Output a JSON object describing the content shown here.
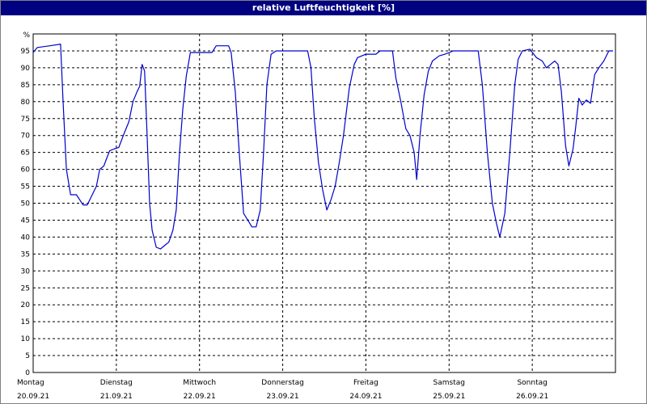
{
  "window": {
    "title": "relative Luftfeuchtigkeit [%]"
  },
  "chart_data": {
    "type": "line",
    "title": "relative Luftfeuchtigkeit [%]",
    "ylabel": "%",
    "xlabel": "",
    "ylim": [
      0,
      100
    ],
    "xlim": [
      0,
      7
    ],
    "yticks": [
      0,
      5,
      10,
      15,
      20,
      25,
      30,
      35,
      40,
      45,
      50,
      55,
      60,
      65,
      70,
      75,
      80,
      85,
      90,
      95
    ],
    "ytick_unit_label": "%",
    "x_ticks": [
      {
        "day": "Montag",
        "date": "20.09.21"
      },
      {
        "day": "Dienstag",
        "date": "21.09.21"
      },
      {
        "day": "Mittwoch",
        "date": "22.09.21"
      },
      {
        "day": "Donnerstag",
        "date": "23.09.21"
      },
      {
        "day": "Freitag",
        "date": "24.09.21"
      },
      {
        "day": "Samstag",
        "date": "25.09.21"
      },
      {
        "day": "Sonntag",
        "date": "26.09.21"
      }
    ],
    "grid": true,
    "series_color": "#0000cc",
    "series": [
      {
        "values": [
          [
            0.0,
            94.5
          ],
          [
            0.05,
            96.0
          ],
          [
            0.2,
            96.5
          ],
          [
            0.33,
            97.0
          ],
          [
            0.36,
            80.0
          ],
          [
            0.4,
            60.0
          ],
          [
            0.45,
            52.5
          ],
          [
            0.52,
            52.5
          ],
          [
            0.6,
            49.5
          ],
          [
            0.65,
            49.5
          ],
          [
            0.72,
            53.0
          ],
          [
            0.76,
            55.0
          ],
          [
            0.8,
            60.0
          ],
          [
            0.85,
            61.0
          ],
          [
            0.88,
            63.0
          ],
          [
            0.92,
            65.5
          ],
          [
            0.97,
            66.0
          ],
          [
            1.03,
            66.5
          ],
          [
            1.1,
            71.0
          ],
          [
            1.15,
            74.0
          ],
          [
            1.2,
            80.0
          ],
          [
            1.25,
            83.0
          ],
          [
            1.28,
            84.5
          ],
          [
            1.31,
            91.0
          ],
          [
            1.34,
            89.0
          ],
          [
            1.37,
            70.0
          ],
          [
            1.4,
            50.0
          ],
          [
            1.43,
            42.0
          ],
          [
            1.48,
            37.0
          ],
          [
            1.53,
            36.5
          ],
          [
            1.58,
            37.5
          ],
          [
            1.63,
            38.5
          ],
          [
            1.68,
            42.0
          ],
          [
            1.72,
            48.0
          ],
          [
            1.76,
            65.0
          ],
          [
            1.8,
            78.0
          ],
          [
            1.84,
            87.5
          ],
          [
            1.89,
            94.5
          ],
          [
            1.97,
            94.5
          ],
          [
            2.15,
            94.5
          ],
          [
            2.2,
            96.5
          ],
          [
            2.35,
            96.5
          ],
          [
            2.38,
            94.5
          ],
          [
            2.43,
            83.0
          ],
          [
            2.48,
            64.0
          ],
          [
            2.53,
            47.0
          ],
          [
            2.58,
            45.0
          ],
          [
            2.63,
            43.0
          ],
          [
            2.68,
            43.0
          ],
          [
            2.73,
            48.0
          ],
          [
            2.77,
            65.0
          ],
          [
            2.81,
            85.0
          ],
          [
            2.86,
            94.0
          ],
          [
            2.92,
            95.0
          ],
          [
            3.0,
            95.0
          ],
          [
            3.3,
            95.0
          ],
          [
            3.34,
            90.0
          ],
          [
            3.38,
            75.0
          ],
          [
            3.43,
            62.0
          ],
          [
            3.48,
            54.0
          ],
          [
            3.53,
            48.0
          ],
          [
            3.58,
            51.0
          ],
          [
            3.63,
            55.0
          ],
          [
            3.68,
            62.0
          ],
          [
            3.73,
            70.0
          ],
          [
            3.8,
            84.0
          ],
          [
            3.86,
            91.0
          ],
          [
            3.9,
            93.0
          ],
          [
            4.0,
            94.0
          ],
          [
            4.12,
            94.0
          ],
          [
            4.17,
            95.0
          ],
          [
            4.32,
            95.0
          ],
          [
            4.36,
            87.0
          ],
          [
            4.42,
            80.0
          ],
          [
            4.48,
            72.0
          ],
          [
            4.53,
            70.0
          ],
          [
            4.58,
            65.0
          ],
          [
            4.61,
            57.0
          ],
          [
            4.65,
            70.0
          ],
          [
            4.7,
            82.0
          ],
          [
            4.75,
            89.0
          ],
          [
            4.8,
            92.0
          ],
          [
            4.88,
            93.5
          ],
          [
            4.95,
            94.0
          ],
          [
            5.05,
            95.0
          ],
          [
            5.35,
            95.0
          ],
          [
            5.4,
            85.0
          ],
          [
            5.46,
            65.0
          ],
          [
            5.52,
            50.0
          ],
          [
            5.57,
            44.0
          ],
          [
            5.61,
            40.0
          ],
          [
            5.67,
            47.0
          ],
          [
            5.73,
            65.0
          ],
          [
            5.79,
            85.0
          ],
          [
            5.83,
            92.5
          ],
          [
            5.88,
            95.0
          ],
          [
            5.97,
            95.5
          ],
          [
            6.05,
            93.0
          ],
          [
            6.12,
            92.0
          ],
          [
            6.17,
            90.0
          ],
          [
            6.22,
            91.0
          ],
          [
            6.27,
            92.0
          ],
          [
            6.31,
            91.0
          ],
          [
            6.35,
            83.0
          ],
          [
            6.4,
            67.0
          ],
          [
            6.44,
            61.0
          ],
          [
            6.49,
            66.0
          ],
          [
            6.52,
            72.0
          ],
          [
            6.56,
            81.0
          ],
          [
            6.6,
            79.0
          ],
          [
            6.65,
            80.5
          ],
          [
            6.7,
            79.5
          ],
          [
            6.75,
            88.0
          ],
          [
            6.8,
            90.0
          ],
          [
            6.86,
            92.0
          ],
          [
            6.92,
            95.0
          ],
          [
            6.97,
            95.0
          ]
        ]
      }
    ]
  }
}
